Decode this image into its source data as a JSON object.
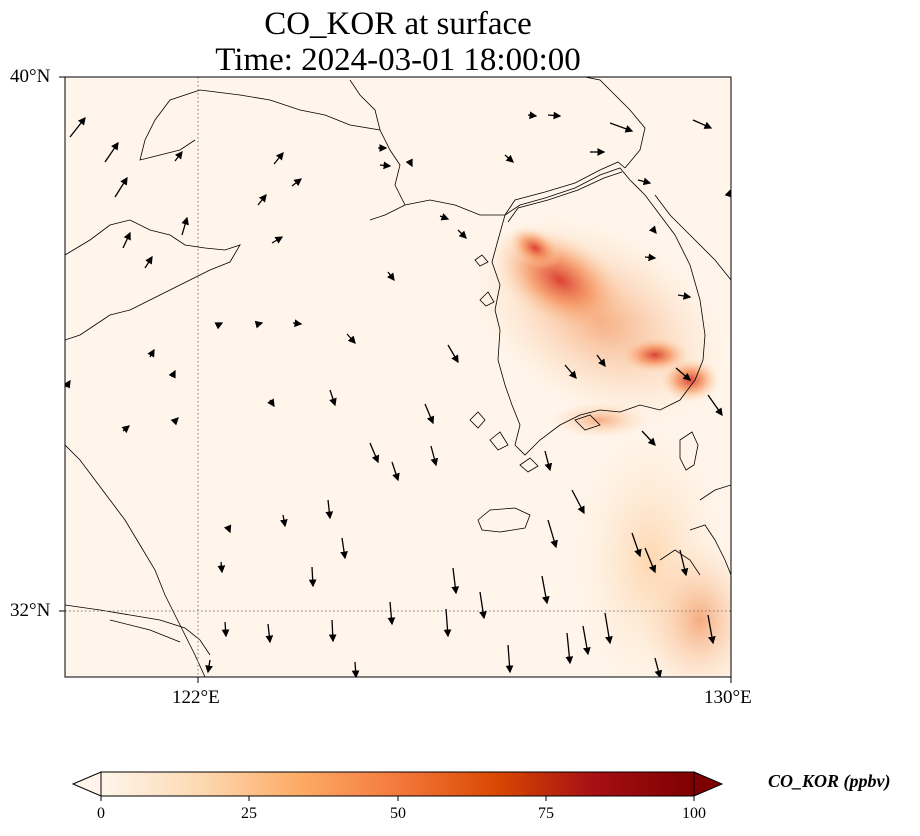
{
  "title": {
    "line1": "CO_KOR at surface",
    "line2": "Time: 2024-03-01 18:00:00"
  },
  "map": {
    "lon_range": [
      120,
      130
    ],
    "lat_range": [
      31,
      40
    ],
    "ticks": {
      "x": [
        {
          "value": 122,
          "label": "122°E"
        },
        {
          "value": 130,
          "label": "130°E"
        }
      ],
      "y": [
        {
          "value": 40,
          "label": "40°N"
        },
        {
          "value": 32,
          "label": "32°N"
        }
      ]
    },
    "gridlines": "dotted",
    "field": "CO_KOR",
    "wind_vectors": "shown"
  },
  "colorbar": {
    "label": "CO_KOR (ppbv)",
    "min": 0,
    "max": 100,
    "extend": "both",
    "ticks": [
      "0",
      "25",
      "50",
      "75",
      "100"
    ],
    "colormap": [
      "#fff5eb",
      "#fdd9b2",
      "#fdab67",
      "#f4793c",
      "#d94801",
      "#a50f15",
      "#7f0000"
    ]
  }
}
